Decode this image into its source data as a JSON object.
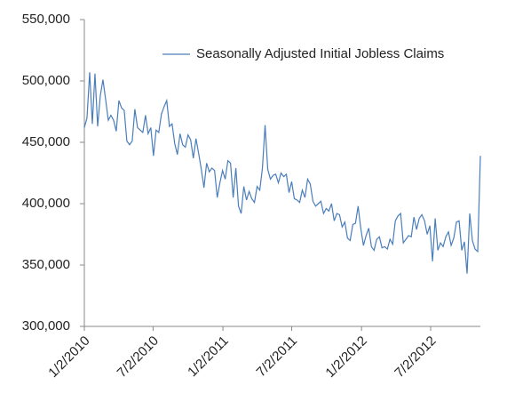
{
  "chart_data": {
    "type": "line",
    "series": [
      {
        "name": "Seasonally Adjusted Initial Jobless Claims",
        "color": "#4a7ebb",
        "values": [
          462000,
          470000,
          507000,
          465000,
          506000,
          463000,
          488000,
          501000,
          485000,
          468000,
          472000,
          468000,
          459000,
          484000,
          478000,
          476000,
          451000,
          448000,
          451000,
          477000,
          462000,
          460000,
          458000,
          472000,
          457000,
          462000,
          439000,
          460000,
          458000,
          473000,
          479000,
          484000,
          463000,
          465000,
          449000,
          440000,
          457000,
          448000,
          446000,
          456000,
          452000,
          437000,
          453000,
          441000,
          428000,
          413000,
          433000,
          426000,
          429000,
          427000,
          405000,
          417000,
          427000,
          420000,
          435000,
          433000,
          405000,
          429000,
          398000,
          392000,
          414000,
          403000,
          410000,
          404000,
          401000,
          414000,
          411000,
          429000,
          464000,
          428000,
          420000,
          423000,
          424000,
          417000,
          425000,
          422000,
          424000,
          409000,
          418000,
          404000,
          403000,
          401000,
          411000,
          405000,
          420000,
          416000,
          402000,
          398000,
          400000,
          402000,
          392000,
          396000,
          394000,
          400000,
          386000,
          392000,
          391000,
          381000,
          385000,
          372000,
          370000,
          383000,
          384000,
          398000,
          380000,
          366000,
          374000,
          380000,
          365000,
          362000,
          371000,
          373000,
          364000,
          365000,
          363000,
          371000,
          367000,
          386000,
          390000,
          392000,
          368000,
          371000,
          374000,
          373000,
          389000,
          379000,
          388000,
          391000,
          386000,
          375000,
          382000,
          353000,
          388000,
          362000,
          368000,
          365000,
          373000,
          377000,
          366000,
          372000,
          385000,
          386000,
          362000,
          369000,
          343000,
          392000,
          370000,
          363000,
          361000,
          439000
        ]
      }
    ],
    "x": [
      "1/2/2010",
      "1/9/2010",
      "1/16/2010",
      "1/23/2010",
      "1/30/2010",
      "2/6/2010",
      "2/13/2010",
      "2/20/2010",
      "2/27/2010",
      "3/6/2010",
      "3/13/2010",
      "3/20/2010",
      "3/27/2010",
      "4/3/2010",
      "4/10/2010",
      "4/17/2010",
      "4/24/2010",
      "5/1/2010",
      "5/8/2010",
      "5/15/2010",
      "5/22/2010",
      "5/29/2010",
      "6/5/2010",
      "6/12/2010",
      "6/19/2010",
      "6/26/2010",
      "7/3/2010",
      "7/10/2010",
      "7/17/2010",
      "7/24/2010",
      "7/31/2010",
      "8/7/2010",
      "8/14/2010",
      "8/21/2010",
      "8/28/2010",
      "9/4/2010",
      "9/11/2010",
      "9/18/2010",
      "9/25/2010",
      "10/2/2010",
      "10/9/2010",
      "10/16/2010",
      "10/23/2010",
      "10/30/2010",
      "11/6/2010",
      "11/13/2010",
      "11/20/2010",
      "11/27/2010",
      "12/4/2010",
      "12/11/2010",
      "12/18/2010",
      "12/25/2010",
      "1/1/2011",
      "1/8/2011",
      "1/15/2011",
      "1/22/2011",
      "1/29/2011",
      "2/5/2011",
      "2/12/2011",
      "2/19/2011",
      "2/26/2011",
      "3/5/2011",
      "3/12/2011",
      "3/19/2011",
      "3/26/2011",
      "4/2/2011",
      "4/9/2011",
      "4/16/2011",
      "4/23/2011",
      "4/30/2011",
      "5/7/2011",
      "5/14/2011",
      "5/21/2011",
      "5/28/2011",
      "6/4/2011",
      "6/11/2011",
      "6/18/2011",
      "6/25/2011",
      "7/2/2011",
      "7/9/2011",
      "7/16/2011",
      "7/23/2011",
      "7/30/2011",
      "8/6/2011",
      "8/13/2011",
      "8/20/2011",
      "8/27/2011",
      "9/3/2011",
      "9/10/2011",
      "9/17/2011",
      "9/24/2011",
      "10/1/2011",
      "10/8/2011",
      "10/15/2011",
      "10/22/2011",
      "10/29/2011",
      "11/5/2011",
      "11/12/2011",
      "11/19/2011",
      "11/26/2011",
      "12/3/2011",
      "12/10/2011",
      "12/17/2011",
      "12/24/2011",
      "12/31/2011",
      "1/7/2012",
      "1/14/2012",
      "1/21/2012",
      "1/28/2012",
      "2/4/2012",
      "2/11/2012",
      "2/18/2012",
      "2/25/2012",
      "3/3/2012",
      "3/10/2012",
      "3/17/2012",
      "3/24/2012",
      "3/31/2012",
      "4/7/2012",
      "4/14/2012",
      "4/21/2012",
      "4/28/2012",
      "5/5/2012",
      "5/12/2012",
      "5/19/2012",
      "5/26/2012",
      "6/2/2012",
      "6/9/2012",
      "6/16/2012",
      "6/23/2012",
      "6/30/2012",
      "7/7/2012",
      "7/14/2012",
      "7/21/2012",
      "7/28/2012",
      "8/4/2012",
      "8/11/2012",
      "8/18/2012",
      "8/25/2012",
      "9/1/2012",
      "9/8/2012",
      "9/15/2012",
      "9/22/2012",
      "9/29/2012",
      "10/6/2012",
      "10/13/2012",
      "10/20/2012",
      "10/27/2012",
      "11/3/2012",
      "11/10/2012"
    ],
    "xlim": [
      "1/2/2010",
      "11/10/2012"
    ],
    "xticks": [
      "1/2/2010",
      "7/2/2010",
      "1/2/2011",
      "7/2/2011",
      "1/2/2012",
      "7/2/2012"
    ],
    "ylim": [
      300000,
      550000
    ],
    "yticks": [
      {
        "value": 300000,
        "label": "300,000"
      },
      {
        "value": 350000,
        "label": "350,000"
      },
      {
        "value": 400000,
        "label": "400,000"
      },
      {
        "value": 450000,
        "label": "450,000"
      },
      {
        "value": 500000,
        "label": "500,000"
      },
      {
        "value": 550000,
        "label": "550,000"
      }
    ],
    "grid": false,
    "legend": "top-right"
  }
}
